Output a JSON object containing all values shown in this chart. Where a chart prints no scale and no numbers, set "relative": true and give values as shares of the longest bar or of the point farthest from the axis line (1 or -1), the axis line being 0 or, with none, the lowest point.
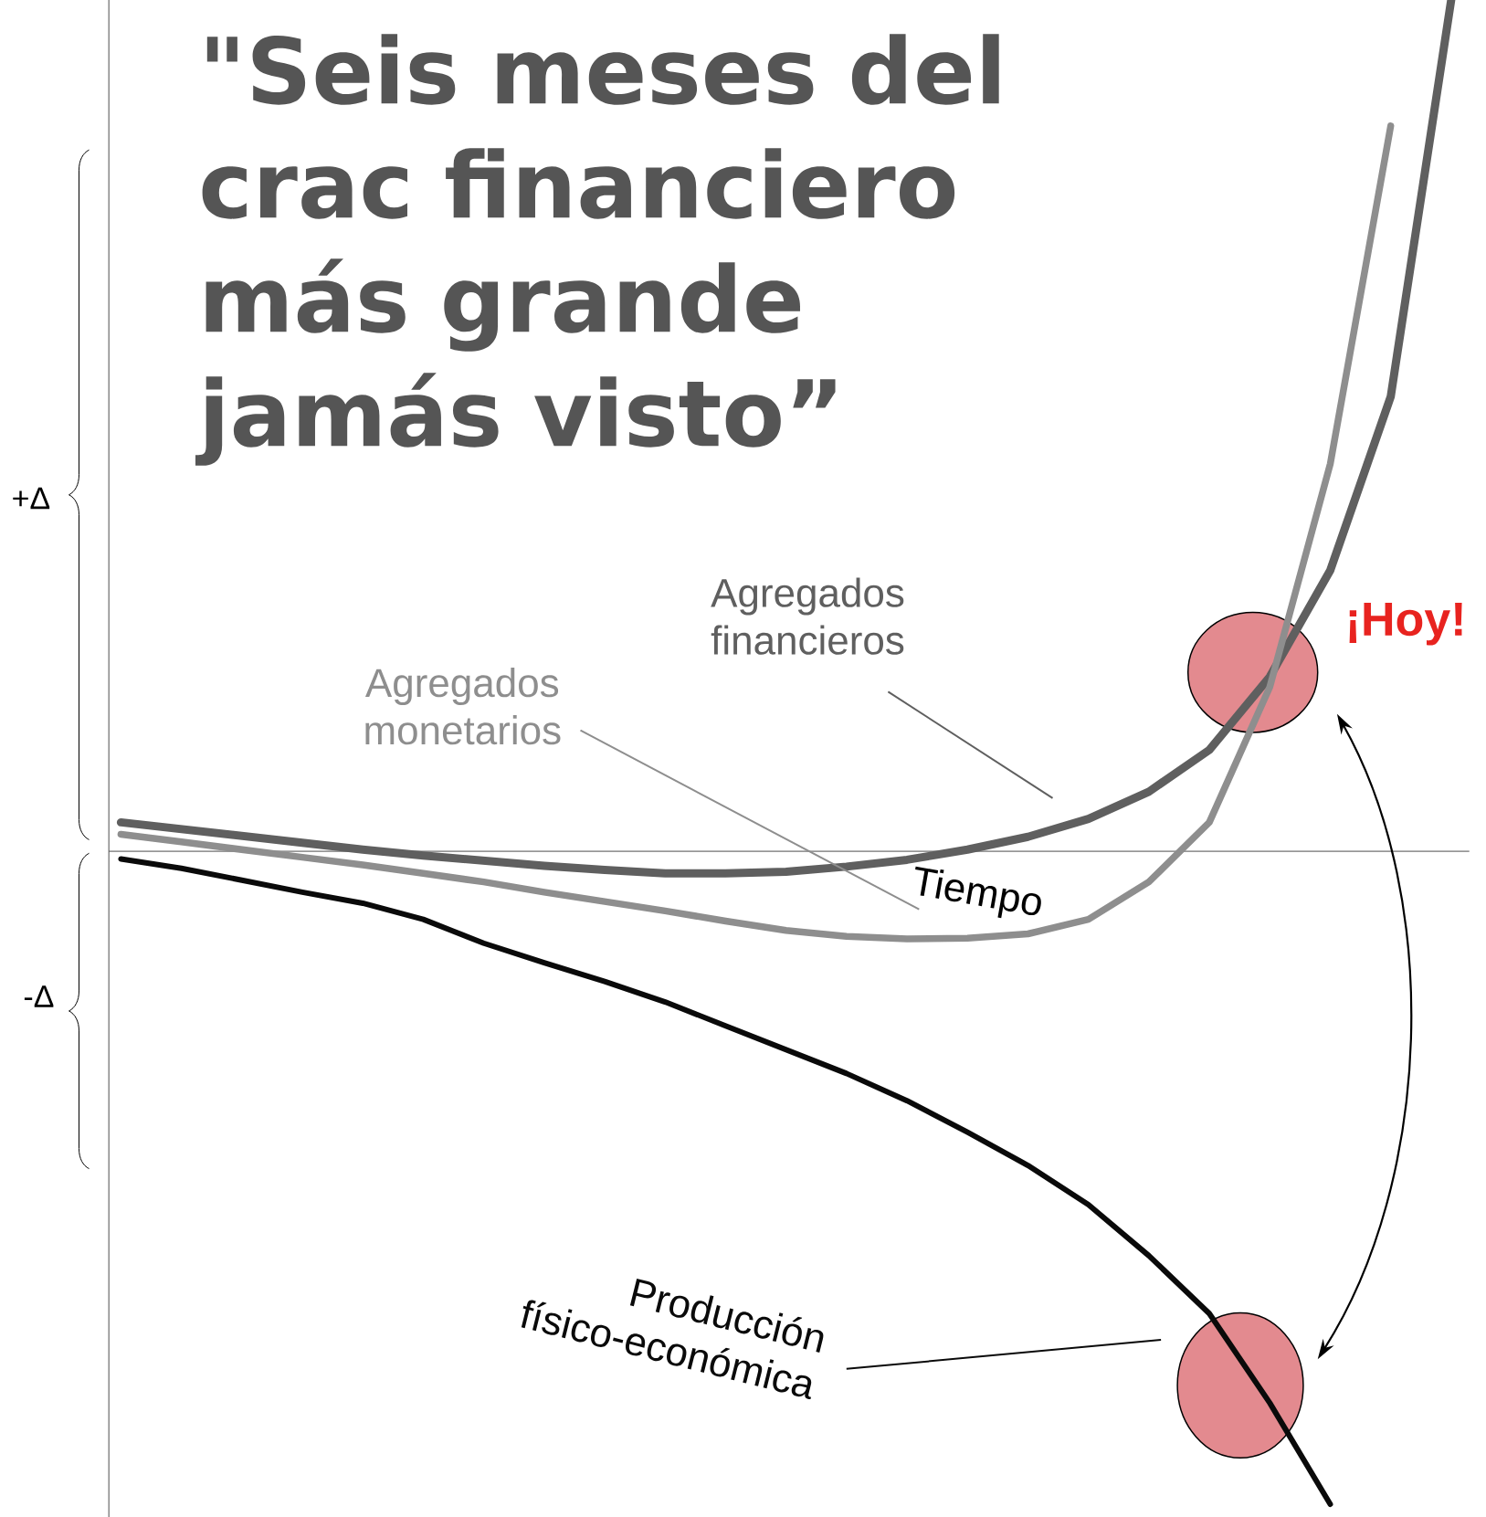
{
  "chart_data": {
    "type": "line",
    "title": "\"Seis meses del crac financiero más grande jamás visto”",
    "xlabel": "Tiempo",
    "relative": true,
    "marker": "none",
    "line_style": "solid",
    "categories": [
      null,
      null,
      null,
      null,
      null,
      null,
      null,
      null,
      null,
      null,
      null,
      null,
      null,
      null,
      null,
      null,
      null,
      null,
      null,
      null,
      null,
      null,
      null
    ],
    "series": [
      {
        "name": "Agregados financieros",
        "color": "#5f5f5f",
        "values": [
          0.034,
          0.026,
          0.018,
          0.01,
          0.002,
          -0.005,
          -0.011,
          -0.017,
          -0.022,
          -0.026,
          -0.026,
          -0.024,
          -0.018,
          -0.01,
          0.002,
          0.017,
          0.038,
          0.07,
          0.119,
          0.205,
          0.33,
          0.534,
          1.0
        ]
      },
      {
        "name": "Agregados monetarios",
        "color": "#8e8e8e",
        "values": [
          0.02,
          0.011,
          0.002,
          -0.007,
          -0.016,
          -0.026,
          -0.036,
          -0.048,
          -0.059,
          -0.07,
          -0.082,
          -0.093,
          -0.1,
          -0.103,
          -0.102,
          -0.097,
          -0.08,
          -0.036,
          0.034,
          0.193,
          0.455,
          0.852,
          null
        ]
      },
      {
        "name": "Producción físico-económica",
        "color": "#0a0a0a",
        "values": [
          -0.009,
          -0.02,
          -0.034,
          -0.048,
          -0.061,
          -0.08,
          -0.108,
          -0.131,
          -0.153,
          -0.177,
          -0.205,
          -0.233,
          -0.261,
          -0.293,
          -0.33,
          -0.369,
          -0.415,
          -0.475,
          -0.543,
          -0.648,
          -0.767,
          null,
          null
        ]
      }
    ],
    "annotations": [
      "+Δ",
      "-Δ",
      "¡Hoy!"
    ]
  }
}
